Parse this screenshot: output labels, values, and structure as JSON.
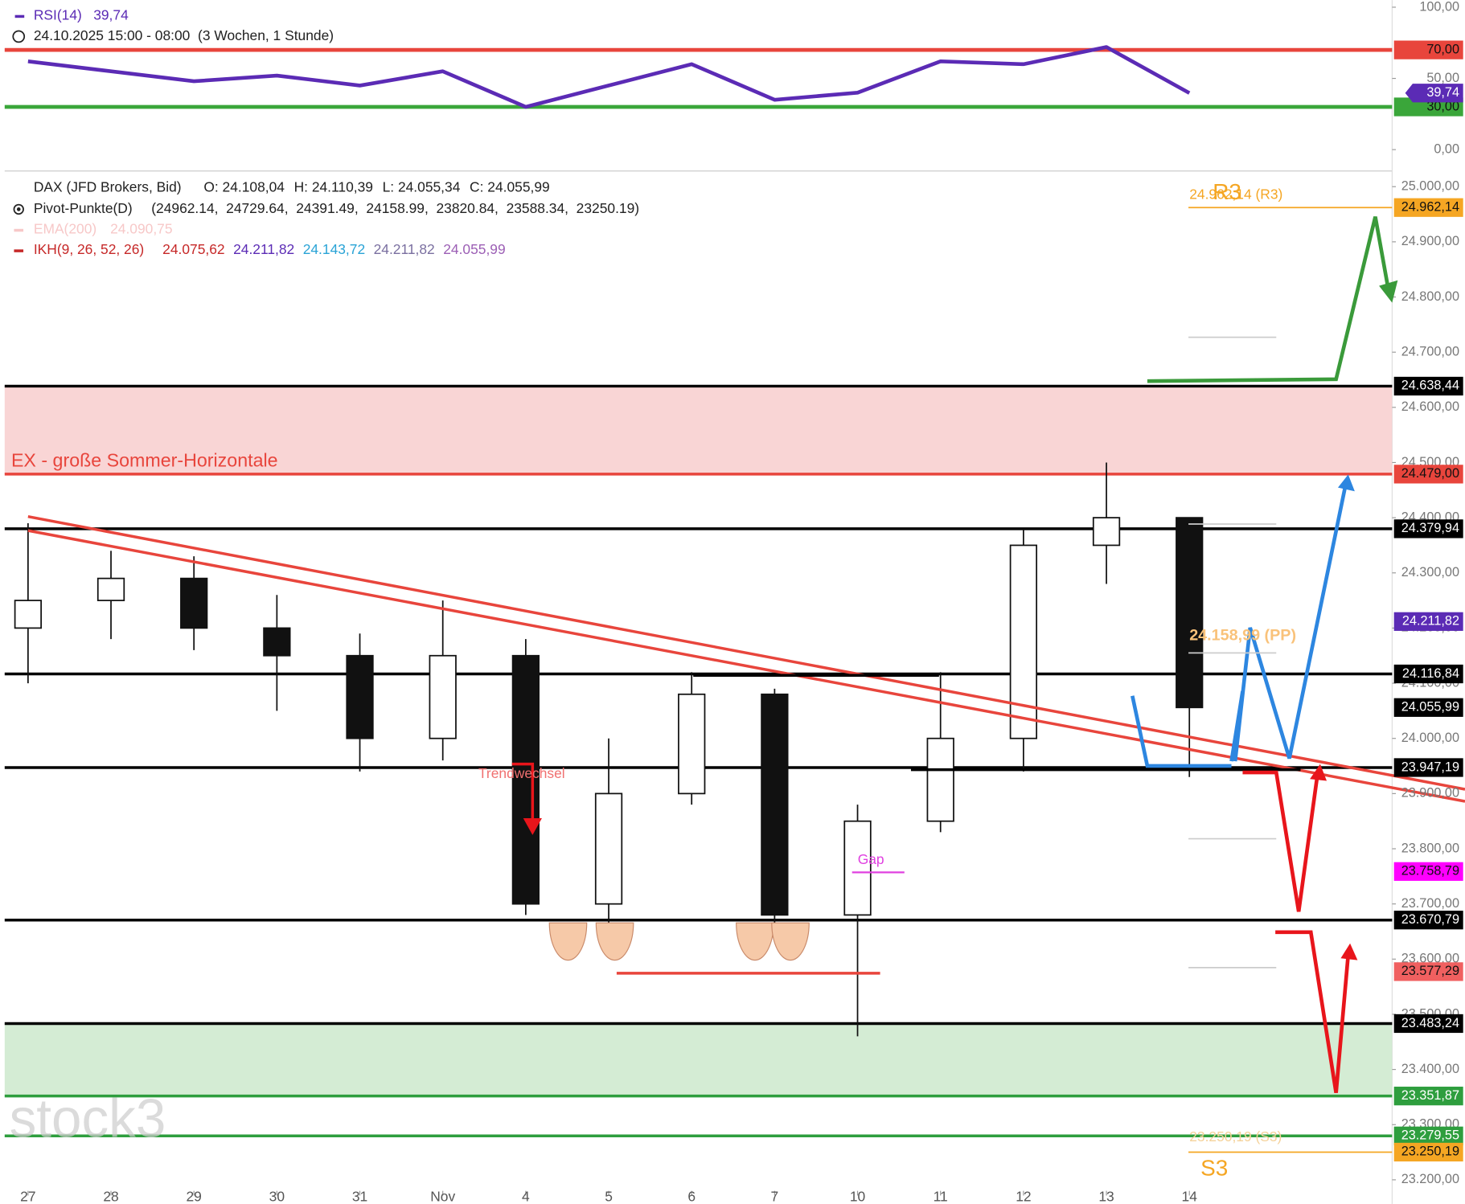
{
  "chart_data": [
    {
      "type": "line",
      "title": "RSI(14)",
      "last_label": "39,74",
      "subtitle": "24.10.2025 15:00 - 08:00  (3 Wochen, 1 Stunde)",
      "categories": [
        "27",
        "28",
        "29",
        "30",
        "31",
        "Nov",
        "4",
        "5",
        "6",
        "7",
        "10",
        "11",
        "12",
        "13",
        "14"
      ],
      "series": [
        {
          "name": "RSI(14)",
          "color": "#5b2bb5",
          "values": [
            62,
            55,
            48,
            52,
            45,
            55,
            30,
            45,
            60,
            35,
            40,
            62,
            60,
            72,
            39.74
          ]
        }
      ],
      "ylim": [
        -15,
        105
      ],
      "yticks": [
        {
          "value": 0,
          "label": "0,00"
        },
        {
          "value": 30,
          "label": "30,00"
        },
        {
          "value": 50,
          "label": "50,00"
        },
        {
          "value": 70,
          "label": "70,00"
        },
        {
          "value": 100,
          "label": "100,00"
        }
      ],
      "levels": [
        {
          "value": 70,
          "color": "#e8453c"
        },
        {
          "value": 30,
          "color": "#3aa63a"
        }
      ]
    },
    {
      "type": "candlestick",
      "title": "DAX (JFD Brokers, Bid)",
      "ohlc_labels": [
        "O: 24.108,04",
        "H: 24.110,39",
        "L: 24.055,34",
        "C: 24.055,99"
      ],
      "pivot_title": "Pivot-Punkte(D)",
      "pivot_values": "(24962.14,  24729.64,  24391.49,  24158.99,  23820.84,  23588.34,  23250.19)",
      "ema_title": "EMA(200)",
      "ema_value": "24.090,75",
      "ikh_title": "IKH(9, 26, 52, 26)",
      "ikh_values": [
        {
          "label": "24.075,62",
          "color": "#c62828"
        },
        {
          "label": "24.211,82",
          "color": "#5b2bb5"
        },
        {
          "label": "24.143,72",
          "color": "#29a3d6"
        },
        {
          "label": "24.211,82",
          "color": "#7a6fa0"
        },
        {
          "label": "24.055,99",
          "color": "#9c5fb5"
        }
      ],
      "categories": [
        "27",
        "28",
        "29",
        "30",
        "31",
        "Nov",
        "4",
        "5",
        "6",
        "7",
        "10",
        "11",
        "12",
        "13",
        "14"
      ],
      "open": [
        24200,
        24250,
        24290,
        24200,
        24150,
        24000,
        24150,
        23700,
        23900,
        24080,
        23680,
        23850,
        24000,
        24350,
        24400
      ],
      "high": [
        24390,
        24340,
        24330,
        24260,
        24190,
        24250,
        24180,
        24000,
        24120,
        24090,
        23880,
        24120,
        24380,
        24500,
        24400
      ],
      "low": [
        24100,
        24180,
        24160,
        24050,
        23940,
        23960,
        23680,
        23660,
        23880,
        23650,
        23460,
        23830,
        23940,
        24280,
        23930
      ],
      "close": [
        24250,
        24290,
        24200,
        24150,
        24000,
        24150,
        23700,
        23900,
        24080,
        23680,
        23850,
        24000,
        24350,
        24400,
        24055.99
      ],
      "ylim": [
        23180,
        25025
      ],
      "yticks": [
        {
          "value": 25000,
          "label": "25.000,00"
        },
        {
          "value": 24900,
          "label": "24.900,00"
        },
        {
          "value": 24800,
          "label": "24.800,00"
        },
        {
          "value": 24700,
          "label": "24.700,00"
        },
        {
          "value": 24600,
          "label": "24.600,00"
        },
        {
          "value": 24500,
          "label": "24.500,00"
        },
        {
          "value": 24400,
          "label": "24.400,00"
        },
        {
          "value": 24300,
          "label": "24.300,00"
        },
        {
          "value": 24200,
          "label": "24.200,00"
        },
        {
          "value": 24100,
          "label": "24.100,00"
        },
        {
          "value": 24000,
          "label": "24.000,00"
        },
        {
          "value": 23900,
          "label": "23.900,00"
        },
        {
          "value": 23800,
          "label": "23.800,00"
        },
        {
          "value": 23700,
          "label": "23.700,00"
        },
        {
          "value": 23600,
          "label": "23.600,00"
        },
        {
          "value": 23500,
          "label": "23.500,00"
        },
        {
          "value": 23400,
          "label": "23.400,00"
        },
        {
          "value": 23300,
          "label": "23.300,00"
        },
        {
          "value": 23200,
          "label": "23.200,00"
        }
      ],
      "zones": [
        {
          "from": 24479,
          "to": 24638.44,
          "color": "#f9d5d5"
        },
        {
          "from": 23351.87,
          "to": 23483.24,
          "color": "#d4ecd4"
        }
      ],
      "levels": [
        {
          "value": 24962.14,
          "label": "24.962,14",
          "color": "#f5a623",
          "style": "short"
        },
        {
          "value": 24638.44,
          "label": "24.638,44",
          "color": "#000000",
          "style": "full"
        },
        {
          "value": 24479,
          "label": "24.479,00",
          "color": "#e8453c",
          "style": "full"
        },
        {
          "value": 24379.94,
          "label": "24.379,94",
          "color": "#000000",
          "style": "full"
        },
        {
          "value": 24211.82,
          "label": "24.211,82",
          "color": "#5b2bb5",
          "style": "none"
        },
        {
          "value": 24116.84,
          "label": "24.116,84",
          "color": "#000000",
          "style": "full"
        },
        {
          "value": 24055.99,
          "label": "24.055,99",
          "color": "#000000",
          "style": "none"
        },
        {
          "value": 23947.19,
          "label": "23.947,19",
          "color": "#000000",
          "style": "full"
        },
        {
          "value": 23758.79,
          "label": "23.758,79",
          "color": "#ff00ff",
          "style": "none"
        },
        {
          "value": 23670.79,
          "label": "23.670,79",
          "color": "#000000",
          "style": "full"
        },
        {
          "value": 23577.29,
          "label": "23.577,29",
          "color": "#f06060",
          "style": "none"
        },
        {
          "value": 23483.24,
          "label": "23.483,24",
          "color": "#000000",
          "style": "full"
        },
        {
          "value": 23351.87,
          "label": "23.351,87",
          "color": "#2e9e3e",
          "style": "full"
        },
        {
          "value": 23279.55,
          "label": "23.279,55",
          "color": "#2e9e3e",
          "style": "full"
        },
        {
          "value": 23250.19,
          "label": "23.250,19",
          "color": "#f5a623",
          "style": "short"
        }
      ],
      "annotations": {
        "zone": "EX - große Sommer-Horizontale",
        "trend": "Trendwechsel",
        "gap": "Gap",
        "r3": "R3",
        "s3": "S3",
        "r3_label": "24.962,14 (R3)",
        "pp_label": "24.158,99 (PP)",
        "s3_label": "23.250,19 (S3)",
        "watermark": "stock3"
      }
    }
  ]
}
